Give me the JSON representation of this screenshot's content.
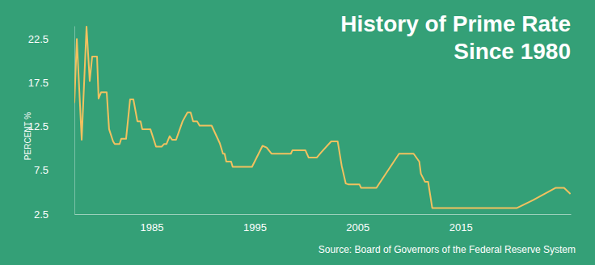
{
  "chart_data": {
    "type": "line",
    "title": [
      "History of Prime Rate",
      "Since 1980"
    ],
    "y_label": "PERCENT %",
    "source": "Source: Board of Governors of the Federal Reserve System",
    "color": "#f2c15f",
    "x": [
      1977.5,
      1977.74,
      1978.21,
      1978.68,
      1978.99,
      1979.23,
      1979.7,
      1979.85,
      1980.09,
      1980.64,
      1980.87,
      1981.26,
      1981.42,
      1981.89,
      1982.05,
      1982.52,
      1982.91,
      1983.23,
      1983.62,
      1983.93,
      1984.09,
      1984.88,
      1985.43,
      1985.97,
      1986.2,
      1986.44,
      1986.75,
      1986.99,
      1987.38,
      1988.01,
      1988.48,
      1988.79,
      1989.03,
      1989.42,
      1989.66,
      1990.83,
      1991.62,
      1991.93,
      1992.09,
      1992.25,
      1992.72,
      1992.87,
      1994.75,
      1995.77,
      1996.17,
      1996.64,
      1998.52,
      1998.68,
      1999.93,
      2000.25,
      2001.03,
      2001.5,
      2002.44,
      2003.07,
      2003.46,
      2003.85,
      2004.09,
      2005.18,
      2005.34,
      2006.83,
      2009.03,
      2010.44,
      2010.99,
      2011.15,
      2011.54,
      2011.85,
      2012.25,
      2020.48,
      2022.05,
      2024.25,
      2025.05,
      2025.67
    ],
    "values": [
      15.2,
      22.5,
      11.0,
      23.9,
      17.7,
      20.5,
      20.5,
      15.7,
      16.4,
      16.4,
      12.2,
      10.8,
      10.5,
      10.5,
      11.1,
      11.1,
      15.6,
      15.6,
      13.1,
      13.1,
      12.2,
      12.2,
      10.2,
      10.2,
      10.5,
      10.5,
      11.4,
      11.0,
      11.0,
      13.1,
      14.1,
      14.1,
      13.1,
      13.1,
      12.6,
      12.6,
      10.6,
      9.4,
      9.4,
      8.5,
      8.5,
      7.9,
      7.9,
      10.3,
      10.1,
      9.4,
      9.4,
      9.8,
      9.8,
      8.95,
      8.95,
      9.6,
      10.8,
      10.8,
      8.0,
      6.0,
      5.9,
      5.9,
      5.5,
      5.5,
      9.4,
      9.4,
      8.5,
      7.1,
      6.2,
      6.2,
      3.2,
      3.2,
      4.1,
      5.5,
      5.5,
      4.8
    ],
    "xlim": [
      1977.5,
      2025.7
    ],
    "xticks": [
      1985,
      1995,
      2005,
      2015
    ],
    "ylim": [
      2.5,
      24.0
    ],
    "yticks": [
      2.5,
      7.5,
      12.5,
      17.5,
      22.5
    ]
  }
}
